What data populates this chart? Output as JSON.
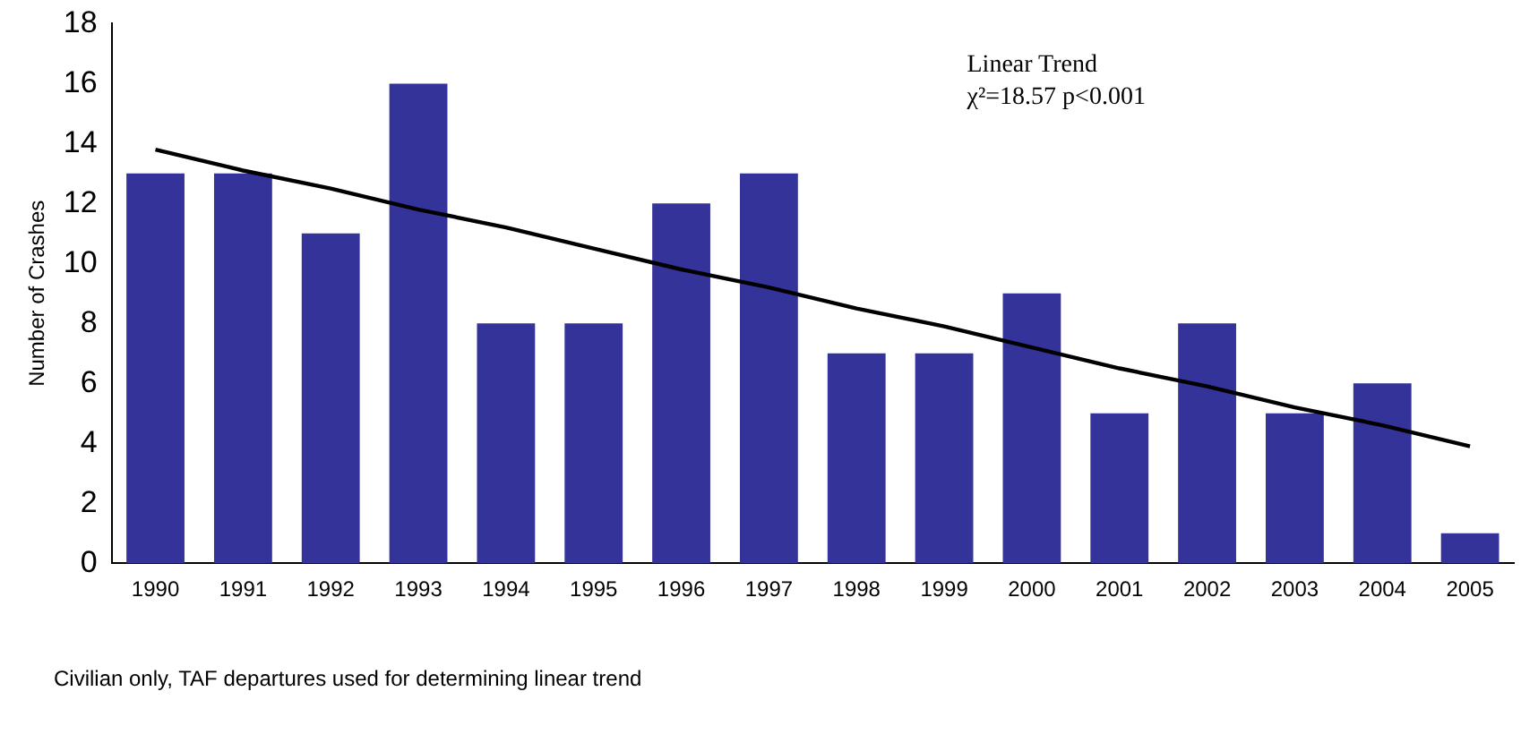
{
  "chart_data": {
    "type": "bar",
    "ylabel": "Number of Crashes",
    "categories": [
      "1990",
      "1991",
      "1992",
      "1993",
      "1994",
      "1995",
      "1996",
      "1997",
      "1998",
      "1999",
      "2000",
      "2001",
      "2002",
      "2003",
      "2004",
      "2005"
    ],
    "series": [
      {
        "color": "#333399",
        "values": [
          13,
          13,
          11,
          16,
          8,
          8,
          12,
          13,
          7,
          7,
          9,
          5,
          8,
          5,
          6,
          1
        ]
      },
      {
        "type": "line",
        "color": "#000000",
        "values": [
          13.8,
          13.1,
          12.5,
          11.8,
          11.2,
          10.5,
          9.8,
          9.2,
          8.5,
          7.9,
          7.2,
          6.5,
          5.9,
          5.2,
          4.6,
          3.9
        ]
      }
    ],
    "ylim": [
      0,
      18
    ],
    "yticks": [
      0,
      2,
      4,
      6,
      8,
      10,
      12,
      14,
      16,
      18
    ],
    "grid": false,
    "legend": false,
    "marker": "none",
    "annotations": [
      "Linear Trend",
      "χ²=18.57 p<0.001",
      "Civilian only, TAF departures used for determining linear trend"
    ]
  }
}
